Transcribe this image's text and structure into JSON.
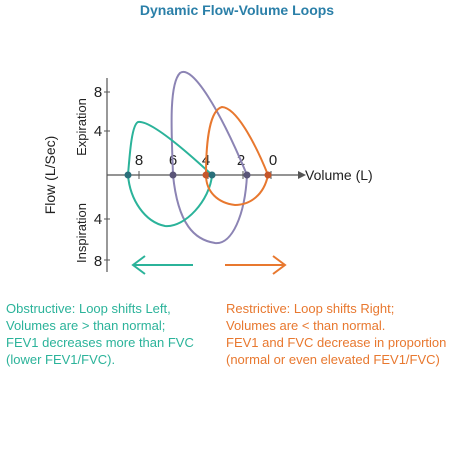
{
  "title": "Dynamic Flow-Volume Loops",
  "axes": {
    "y_label": "Flow (L/Sec)",
    "x_label": "Volume (L)",
    "expiration_label": "Expiration",
    "inspiration_label": "Inspiration",
    "y_ticks_expiration": [
      "8",
      "4"
    ],
    "y_ticks_inspiration": [
      "4",
      "8"
    ],
    "x_ticks": [
      "8",
      "6",
      "4",
      "2",
      "0"
    ]
  },
  "colors": {
    "obstructive": "#2bb39a",
    "restrictive": "#e8782f",
    "normal": "#8c84b4",
    "axis": "#555555",
    "title": "#2a7fa8"
  },
  "arrows": {
    "left_icon": "arrow-left-icon",
    "right_icon": "arrow-right-icon"
  },
  "captions": {
    "obstructive": [
      "Obstructive: Loop shifts Left,",
      "Volumes are > than normal;",
      "FEV1 decreases more than FVC",
      "(lower FEV1/FVC)."
    ],
    "restrictive": [
      "Restrictive: Loop shifts Right;",
      "Volumes are < than normal.",
      "FEV1 and FVC decrease in proportion",
      "(normal or even elevated FEV1/FVC)"
    ]
  }
}
